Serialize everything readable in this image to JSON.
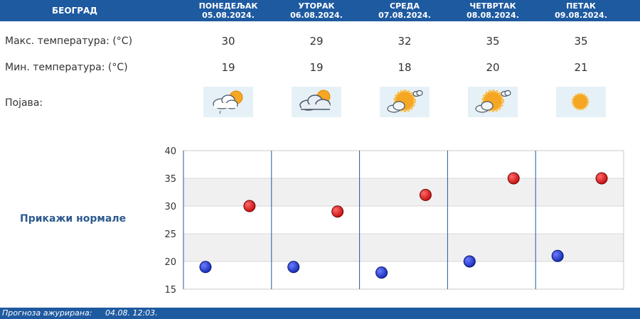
{
  "header": {
    "city": "БЕОГРАД",
    "days": [
      {
        "name": "ПОНЕДЕЉАК",
        "date": "05.08.2024."
      },
      {
        "name": "УТОРАК",
        "date": "06.08.2024."
      },
      {
        "name": "СРЕДА",
        "date": "07.08.2024."
      },
      {
        "name": "ЧЕТВРТАК",
        "date": "08.08.2024."
      },
      {
        "name": "ПЕТАК",
        "date": "09.08.2024."
      }
    ]
  },
  "rows": {
    "max_label": "Макс. температура: (°C)",
    "min_label": "Мин. температура: (°C)",
    "phenomenon_label": "Појава:"
  },
  "max_temps": [
    "30",
    "29",
    "32",
    "35",
    "35"
  ],
  "min_temps": [
    "19",
    "19",
    "18",
    "20",
    "21"
  ],
  "icons": [
    "cloudy-sun-drizzle-icon",
    "cloudy-sun-icon",
    "sun-cloud-icon",
    "sun-cloud-icon",
    "sun-icon"
  ],
  "normals_link": "Прикажи нормале",
  "chart_data": {
    "type": "scatter",
    "categories": [
      "ПОНЕДЕЉАК",
      "УТОРАК",
      "СРЕДА",
      "ЧЕТВРТАК",
      "ПЕТАК"
    ],
    "ylim": [
      15,
      40
    ],
    "yticks": [
      "15",
      "20",
      "25",
      "30",
      "35",
      "40"
    ],
    "series": [
      {
        "values": [
          19,
          19,
          18,
          20,
          21
        ],
        "color": "#1a2fb8"
      },
      {
        "values": [
          30,
          29,
          32,
          35,
          35
        ],
        "color": "#c81010"
      }
    ],
    "grid": true
  },
  "footer": {
    "label": "Прогноза ажурирана:",
    "value": "04.08. 12:03."
  }
}
